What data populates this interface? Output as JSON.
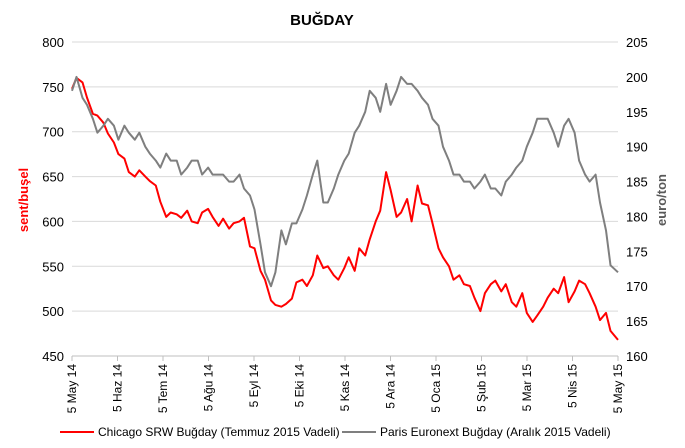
{
  "chart_data": {
    "type": "line",
    "title": "BUĞDAY",
    "ylabel": "sent/buşel",
    "y2label": "euro/ton",
    "ylim": [
      450,
      800
    ],
    "y2lim": [
      160,
      205
    ],
    "yticks": [
      450,
      500,
      550,
      600,
      650,
      700,
      750,
      800
    ],
    "y2ticks": [
      160,
      165,
      170,
      175,
      180,
      185,
      190,
      195,
      200,
      205
    ],
    "x_start": "2014-05-05",
    "x_end": "2015-05-05",
    "xticks": [
      "5 May 14",
      "5 Haz 14",
      "5 Tem 14",
      "5 Ağu 14",
      "5 Eyl 14",
      "5 Eki 14",
      "5 Kas 14",
      "5 Ara 14",
      "5 Oca 15",
      "5 Şub 15",
      "5 Mar 15",
      "5 Nis 15",
      "5 May 15"
    ],
    "grid": true,
    "legend_position": "bottom",
    "series": [
      {
        "name": "Chicago SRW Buğday (Temmuz 2015 Vadeli)",
        "axis": "left",
        "color": "#ff0000",
        "x": [
          "2014-05-05",
          "2014-05-08",
          "2014-05-12",
          "2014-05-15",
          "2014-05-19",
          "2014-05-22",
          "2014-05-26",
          "2014-05-29",
          "2014-06-02",
          "2014-06-05",
          "2014-06-09",
          "2014-06-12",
          "2014-06-16",
          "2014-06-19",
          "2014-06-23",
          "2014-06-26",
          "2014-06-30",
          "2014-07-03",
          "2014-07-07",
          "2014-07-10",
          "2014-07-14",
          "2014-07-17",
          "2014-07-21",
          "2014-07-24",
          "2014-07-28",
          "2014-07-31",
          "2014-08-04",
          "2014-08-07",
          "2014-08-11",
          "2014-08-14",
          "2014-08-18",
          "2014-08-21",
          "2014-08-25",
          "2014-08-28",
          "2014-09-01",
          "2014-09-04",
          "2014-09-08",
          "2014-09-11",
          "2014-09-15",
          "2014-09-18",
          "2014-09-22",
          "2014-09-25",
          "2014-09-29",
          "2014-10-02",
          "2014-10-06",
          "2014-10-09",
          "2014-10-13",
          "2014-10-16",
          "2014-10-20",
          "2014-10-23",
          "2014-10-27",
          "2014-10-30",
          "2014-11-03",
          "2014-11-06",
          "2014-11-10",
          "2014-11-13",
          "2014-11-17",
          "2014-11-20",
          "2014-11-24",
          "2014-11-27",
          "2014-12-01",
          "2014-12-04",
          "2014-12-08",
          "2014-12-11",
          "2014-12-15",
          "2014-12-18",
          "2014-12-22",
          "2014-12-25",
          "2014-12-29",
          "2015-01-01",
          "2015-01-05",
          "2015-01-08",
          "2015-01-12",
          "2015-01-15",
          "2015-01-19",
          "2015-01-22",
          "2015-01-26",
          "2015-01-29",
          "2015-02-02",
          "2015-02-05",
          "2015-02-09",
          "2015-02-12",
          "2015-02-16",
          "2015-02-19",
          "2015-02-23",
          "2015-02-26",
          "2015-03-02",
          "2015-03-05",
          "2015-03-09",
          "2015-03-12",
          "2015-03-16",
          "2015-03-19",
          "2015-03-23",
          "2015-03-26",
          "2015-03-30",
          "2015-04-02",
          "2015-04-06",
          "2015-04-09",
          "2015-04-13",
          "2015-04-16",
          "2015-04-20",
          "2015-04-23",
          "2015-04-27",
          "2015-04-30",
          "2015-05-05"
        ],
        "values": [
          748,
          760,
          755,
          738,
          720,
          718,
          710,
          698,
          688,
          675,
          670,
          655,
          650,
          657,
          650,
          645,
          640,
          622,
          605,
          610,
          608,
          604,
          612,
          600,
          598,
          610,
          614,
          605,
          595,
          603,
          592,
          598,
          600,
          604,
          572,
          570,
          545,
          535,
          512,
          507,
          505,
          508,
          514,
          532,
          535,
          528,
          540,
          562,
          548,
          550,
          540,
          535,
          548,
          560,
          545,
          570,
          562,
          580,
          600,
          612,
          655,
          635,
          605,
          610,
          625,
          600,
          640,
          620,
          618,
          598,
          570,
          560,
          550,
          535,
          540,
          530,
          528,
          515,
          500,
          520,
          530,
          534,
          522,
          530,
          510,
          505,
          520,
          498,
          488,
          495,
          505,
          515,
          525,
          520,
          538,
          510,
          522,
          534,
          530,
          520,
          505,
          490,
          498,
          478,
          468
        ]
      },
      {
        "name": "Paris Euronext Buğday (Aralık 2015 Vadeli)",
        "axis": "right",
        "color": "#7f7f7f",
        "x": [
          "2014-05-05",
          "2014-05-08",
          "2014-05-12",
          "2014-05-15",
          "2014-05-19",
          "2014-05-22",
          "2014-05-26",
          "2014-05-29",
          "2014-06-02",
          "2014-06-05",
          "2014-06-09",
          "2014-06-12",
          "2014-06-16",
          "2014-06-19",
          "2014-06-23",
          "2014-06-26",
          "2014-06-30",
          "2014-07-03",
          "2014-07-07",
          "2014-07-10",
          "2014-07-14",
          "2014-07-17",
          "2014-07-21",
          "2014-07-24",
          "2014-07-28",
          "2014-07-31",
          "2014-08-04",
          "2014-08-07",
          "2014-08-11",
          "2014-08-14",
          "2014-08-18",
          "2014-08-21",
          "2014-08-25",
          "2014-08-28",
          "2014-09-01",
          "2014-09-04",
          "2014-09-08",
          "2014-09-11",
          "2014-09-15",
          "2014-09-18",
          "2014-09-22",
          "2014-09-25",
          "2014-09-29",
          "2014-10-02",
          "2014-10-06",
          "2014-10-09",
          "2014-10-13",
          "2014-10-16",
          "2014-10-20",
          "2014-10-23",
          "2014-10-27",
          "2014-10-30",
          "2014-11-03",
          "2014-11-06",
          "2014-11-10",
          "2014-11-13",
          "2014-11-17",
          "2014-11-20",
          "2014-11-24",
          "2014-11-27",
          "2014-12-01",
          "2014-12-04",
          "2014-12-08",
          "2014-12-11",
          "2014-12-15",
          "2014-12-18",
          "2014-12-22",
          "2014-12-25",
          "2014-12-29",
          "2015-01-01",
          "2015-01-05",
          "2015-01-08",
          "2015-01-12",
          "2015-01-15",
          "2015-01-19",
          "2015-01-22",
          "2015-01-26",
          "2015-01-29",
          "2015-02-02",
          "2015-02-05",
          "2015-02-09",
          "2015-02-12",
          "2015-02-16",
          "2015-02-19",
          "2015-02-23",
          "2015-02-26",
          "2015-03-02",
          "2015-03-05",
          "2015-03-09",
          "2015-03-12",
          "2015-03-16",
          "2015-03-19",
          "2015-03-23",
          "2015-03-26",
          "2015-03-30",
          "2015-04-02",
          "2015-04-06",
          "2015-04-09",
          "2015-04-13",
          "2015-04-16",
          "2015-04-20",
          "2015-04-23",
          "2015-04-27",
          "2015-04-30",
          "2015-05-05"
        ],
        "values": [
          198,
          200,
          197,
          196,
          194,
          192,
          193,
          194,
          193,
          191,
          193,
          192,
          191,
          192,
          190,
          189,
          188,
          187,
          189,
          188,
          188,
          186,
          187,
          188,
          188,
          186,
          187,
          186,
          186,
          186,
          185,
          185,
          186,
          184,
          183,
          181,
          176,
          172,
          170,
          172,
          178,
          176,
          179,
          179,
          181,
          183,
          186,
          188,
          182,
          182,
          184,
          186,
          188,
          189,
          192,
          193,
          195,
          198,
          197,
          195,
          199,
          196,
          198,
          200,
          199,
          199,
          198,
          197,
          196,
          194,
          193,
          190,
          188,
          186,
          186,
          185,
          185,
          184,
          185,
          186,
          184,
          184,
          183,
          185,
          186,
          187,
          188,
          190,
          192,
          194,
          194,
          194,
          192,
          190,
          193,
          194,
          192,
          188,
          186,
          185,
          186,
          182,
          178,
          173,
          172
        ]
      }
    ]
  }
}
